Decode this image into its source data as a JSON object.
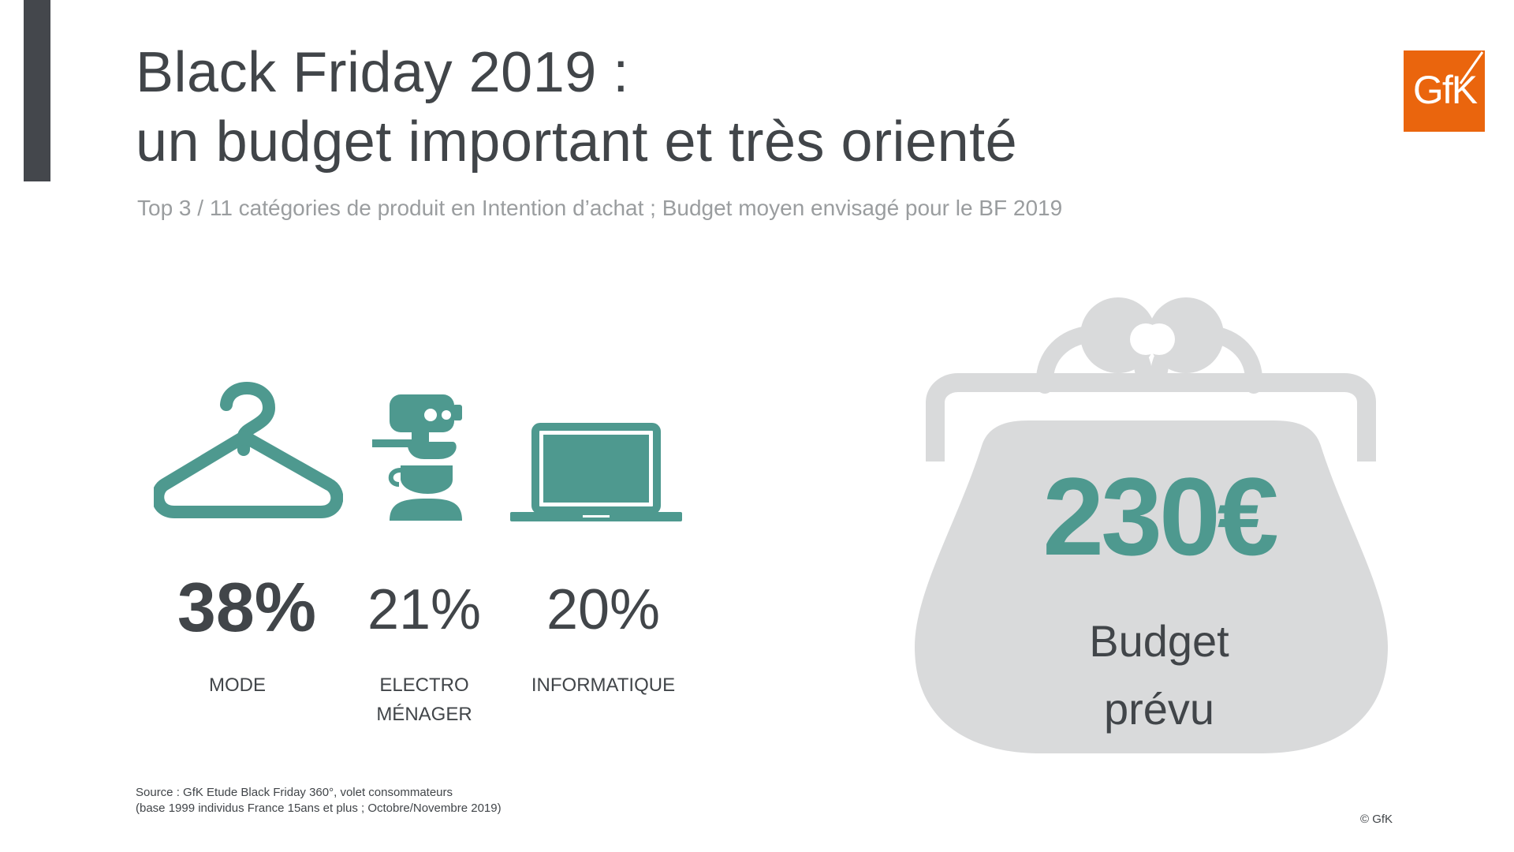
{
  "header": {
    "title_line1": "Black Friday 2019 :",
    "title_line2": "un budget important et très orienté",
    "subtitle": "Top 3 / 11 catégories de produit en Intention d’achat ; Budget moyen envisagé pour le BF 2019"
  },
  "logo": {
    "text": "GfK",
    "color": "#ea650d"
  },
  "categories": [
    {
      "icon": "hanger-icon",
      "value": "38%",
      "label_lines": [
        "MODE"
      ]
    },
    {
      "icon": "coffee-machine-icon",
      "value": "21%",
      "label_lines": [
        "ELECTRO",
        "MÉNAGER"
      ]
    },
    {
      "icon": "laptop-icon",
      "value": "20%",
      "label_lines": [
        "INFORMATIQUE"
      ]
    }
  ],
  "budget": {
    "amount": "230€",
    "label_line1": "Budget",
    "label_line2": "prévu",
    "icon": "purse-icon"
  },
  "footer": {
    "source_line1": "Source : GfK Etude Black Friday 360°, volet consommateurs",
    "source_line2": "(base 1999 individus France 15ans et plus ; Octobre/Novembre 2019)",
    "copyright": "© GfK"
  },
  "colors": {
    "accent_bar": "#44474c",
    "teal": "#4e998f",
    "purse_grey": "#d9dadb",
    "text_dark": "#414549",
    "subtitle_grey": "#9a9d9f"
  }
}
